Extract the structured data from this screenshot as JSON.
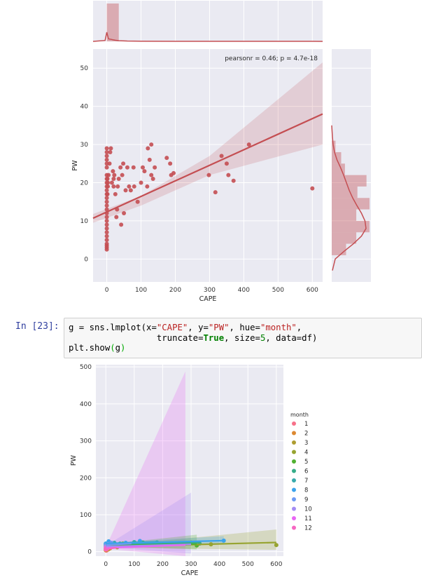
{
  "notebook": {
    "prompt": "In [23]:",
    "code_lines": [
      [
        "g = sns.lmplot(x=",
        "\"CAPE\"",
        ", y=",
        "\"PW\"",
        ", hue=",
        "\"month\"",
        ","
      ],
      [
        "                 truncate=",
        "True",
        ", size=",
        "5",
        ", data=df)"
      ],
      [
        "plt.show",
        "(",
        "g",
        ")"
      ]
    ]
  },
  "chart_data": [
    {
      "type": "scatter",
      "title": "",
      "xlabel": "CAPE",
      "ylabel": "PW",
      "xlim": [
        -40,
        630
      ],
      "ylim": [
        -6,
        55
      ],
      "x_ticks": [
        0,
        100,
        200,
        300,
        400,
        500,
        600
      ],
      "y_ticks": [
        0,
        10,
        20,
        30,
        40,
        50
      ],
      "annotation": "pearsonr = 0.46; p = 4.7e-18",
      "color": "#c44e52",
      "grid": true,
      "regression": {
        "x": [
          -40,
          630
        ],
        "y": [
          10.7,
          38.0
        ]
      },
      "ci_band": {
        "x": [
          -40,
          100,
          300,
          630
        ],
        "upper": [
          11.8,
          16.5,
          27.0,
          51.5
        ],
        "lower": [
          9.5,
          14.0,
          22.0,
          30.0
        ]
      },
      "points_x": [
        0,
        0,
        0,
        0,
        0,
        0,
        0,
        0,
        0,
        0,
        0,
        0,
        0,
        0,
        0,
        0,
        0,
        0,
        0,
        0,
        0,
        0,
        0,
        0,
        0,
        0,
        0,
        0,
        2,
        2,
        3,
        3,
        5,
        8,
        10,
        12,
        15,
        18,
        20,
        20,
        22,
        25,
        28,
        30,
        32,
        35,
        40,
        42,
        45,
        48,
        50,
        55,
        60,
        65,
        70,
        78,
        80,
        90,
        100,
        105,
        110,
        118,
        120,
        125,
        130,
        130,
        135,
        140,
        175,
        185,
        188,
        195,
        298,
        317,
        335,
        350,
        355,
        370,
        415,
        600
      ],
      "points_y": [
        2.5,
        3,
        3.5,
        4,
        5,
        6,
        7,
        8,
        9,
        10,
        11,
        12,
        13,
        14,
        15,
        16,
        17,
        18,
        19,
        20,
        21,
        22,
        24,
        25,
        26,
        27,
        28,
        29,
        17,
        21,
        19,
        20,
        22,
        25,
        28,
        29,
        20,
        23,
        19,
        21,
        22,
        17,
        11,
        13,
        19,
        21,
        24,
        9,
        22,
        25,
        12,
        18,
        24,
        19,
        18,
        24,
        19,
        15,
        20,
        24,
        23,
        19,
        29,
        26,
        22,
        30,
        21,
        24,
        26.5,
        25,
        22,
        22.5,
        22,
        17.5,
        27,
        25,
        22,
        20.5,
        30,
        18.5
      ],
      "marginal_x": {
        "kde_x": [
          -40,
          -5,
          0,
          5,
          12,
          18,
          25,
          35,
          60,
          100,
          200,
          300,
          400,
          500,
          600,
          630
        ],
        "kde_density": [
          0,
          0.2,
          2.0,
          0.55,
          0.45,
          0.35,
          0.25,
          0.15,
          0.08,
          0.04,
          0.02,
          0.02,
          0.015,
          0.01,
          0.01,
          0
        ],
        "hist_bin_edges": [
          0,
          35
        ],
        "hist_counts": [
          1
        ]
      },
      "marginal_y": {
        "kde_y": [
          -3,
          0,
          2,
          4,
          6,
          8,
          10,
          12,
          14,
          16,
          18,
          20,
          22,
          24,
          26,
          28,
          30,
          32,
          35
        ],
        "kde_density": [
          0.02,
          0.1,
          0.35,
          0.62,
          0.85,
          0.98,
          0.95,
          0.85,
          0.72,
          0.6,
          0.5,
          0.42,
          0.34,
          0.25,
          0.15,
          0.08,
          0.04,
          0.02,
          0.0
        ],
        "hist_bin_edges": [
          1,
          4,
          7,
          10,
          13,
          16,
          19,
          22,
          25,
          28,
          31
        ],
        "hist_counts": [
          0.38,
          0.65,
          1.0,
          0.65,
          1.0,
          0.68,
          0.92,
          0.35,
          0.25,
          0.1
        ]
      }
    },
    {
      "type": "scatter",
      "title": "",
      "xlabel": "CAPE",
      "ylabel": "PW",
      "xlim": [
        -35,
        625
      ],
      "ylim": [
        -12,
        506
      ],
      "x_ticks": [
        0,
        100,
        200,
        300,
        400,
        500,
        600
      ],
      "y_ticks": [
        0,
        100,
        200,
        300,
        400,
        500
      ],
      "grid": true,
      "legend": {
        "title": "month",
        "placement": "right"
      },
      "series": [
        {
          "name": "1",
          "color": "#f77189",
          "x": [
            0,
            0,
            0,
            2,
            5
          ],
          "y": [
            5,
            8,
            12,
            3,
            6
          ],
          "line_x": [
            0,
            8
          ],
          "line_y": [
            8,
            10
          ]
        },
        {
          "name": "2",
          "color": "#dc8932",
          "x": [
            0,
            0,
            3,
            8,
            15
          ],
          "y": [
            4,
            7,
            12,
            6,
            9
          ],
          "line_x": [
            0,
            20
          ],
          "line_y": [
            7,
            9
          ]
        },
        {
          "name": "3",
          "color": "#ae9d31",
          "x": [
            0,
            10,
            20,
            40
          ],
          "y": [
            10,
            8,
            13,
            12
          ],
          "line_x": [
            0,
            40
          ],
          "line_y": [
            9,
            12
          ]
        },
        {
          "name": "4",
          "color": "#97a431",
          "x": [
            0,
            50,
            100,
            300,
            370,
            600
          ],
          "y": [
            15,
            18,
            20,
            25,
            20,
            18
          ],
          "line_x": [
            0,
            600
          ],
          "line_y": [
            13,
            25
          ]
        },
        {
          "name": "5",
          "color": "#50b131",
          "x": [
            0,
            20,
            60,
            130,
            320
          ],
          "y": [
            18,
            20,
            22,
            21,
            17
          ],
          "line_x": [
            0,
            320
          ],
          "line_y": [
            18,
            21
          ]
        },
        {
          "name": "6",
          "color": "#36ad8a",
          "x": [
            0,
            50,
            130,
            330
          ],
          "y": [
            20,
            22,
            25,
            22
          ],
          "line_x": [
            0,
            330
          ],
          "line_y": [
            20,
            25
          ]
        },
        {
          "name": "7",
          "color": "#38aaac",
          "x": [
            0,
            30,
            100,
            180
          ],
          "y": [
            22,
            24,
            26,
            25
          ],
          "line_x": [
            0,
            180
          ],
          "line_y": [
            22,
            27
          ]
        },
        {
          "name": "8",
          "color": "#3ba3ec",
          "x": [
            0,
            10,
            70,
            120,
            415
          ],
          "y": [
            22,
            28,
            24,
            29,
            30
          ],
          "line_x": [
            0,
            415
          ],
          "line_y": [
            22,
            30
          ]
        },
        {
          "name": "9",
          "color": "#6e9bf4",
          "x": [
            0,
            20,
            90
          ],
          "y": [
            18,
            24,
            22
          ],
          "line_x": [
            0,
            90
          ],
          "line_y": [
            18,
            22
          ]
        },
        {
          "name": "10",
          "color": "#a48cf4",
          "x": [
            0,
            8,
            20
          ],
          "y": [
            14,
            20,
            17
          ],
          "line_x": [
            0,
            300
          ],
          "line_y": [
            14,
            20
          ]
        },
        {
          "name": "11",
          "color": "#e866f4",
          "x": [
            0,
            3,
            6
          ],
          "y": [
            10,
            13,
            9
          ],
          "line_x": [
            0,
            280
          ],
          "line_y": [
            10,
            18
          ]
        },
        {
          "name": "12",
          "color": "#f668c2",
          "x": [
            0,
            2,
            5
          ],
          "y": [
            6,
            10,
            8
          ],
          "line_x": [
            0,
            40
          ],
          "line_y": [
            7,
            11
          ]
        }
      ]
    }
  ]
}
